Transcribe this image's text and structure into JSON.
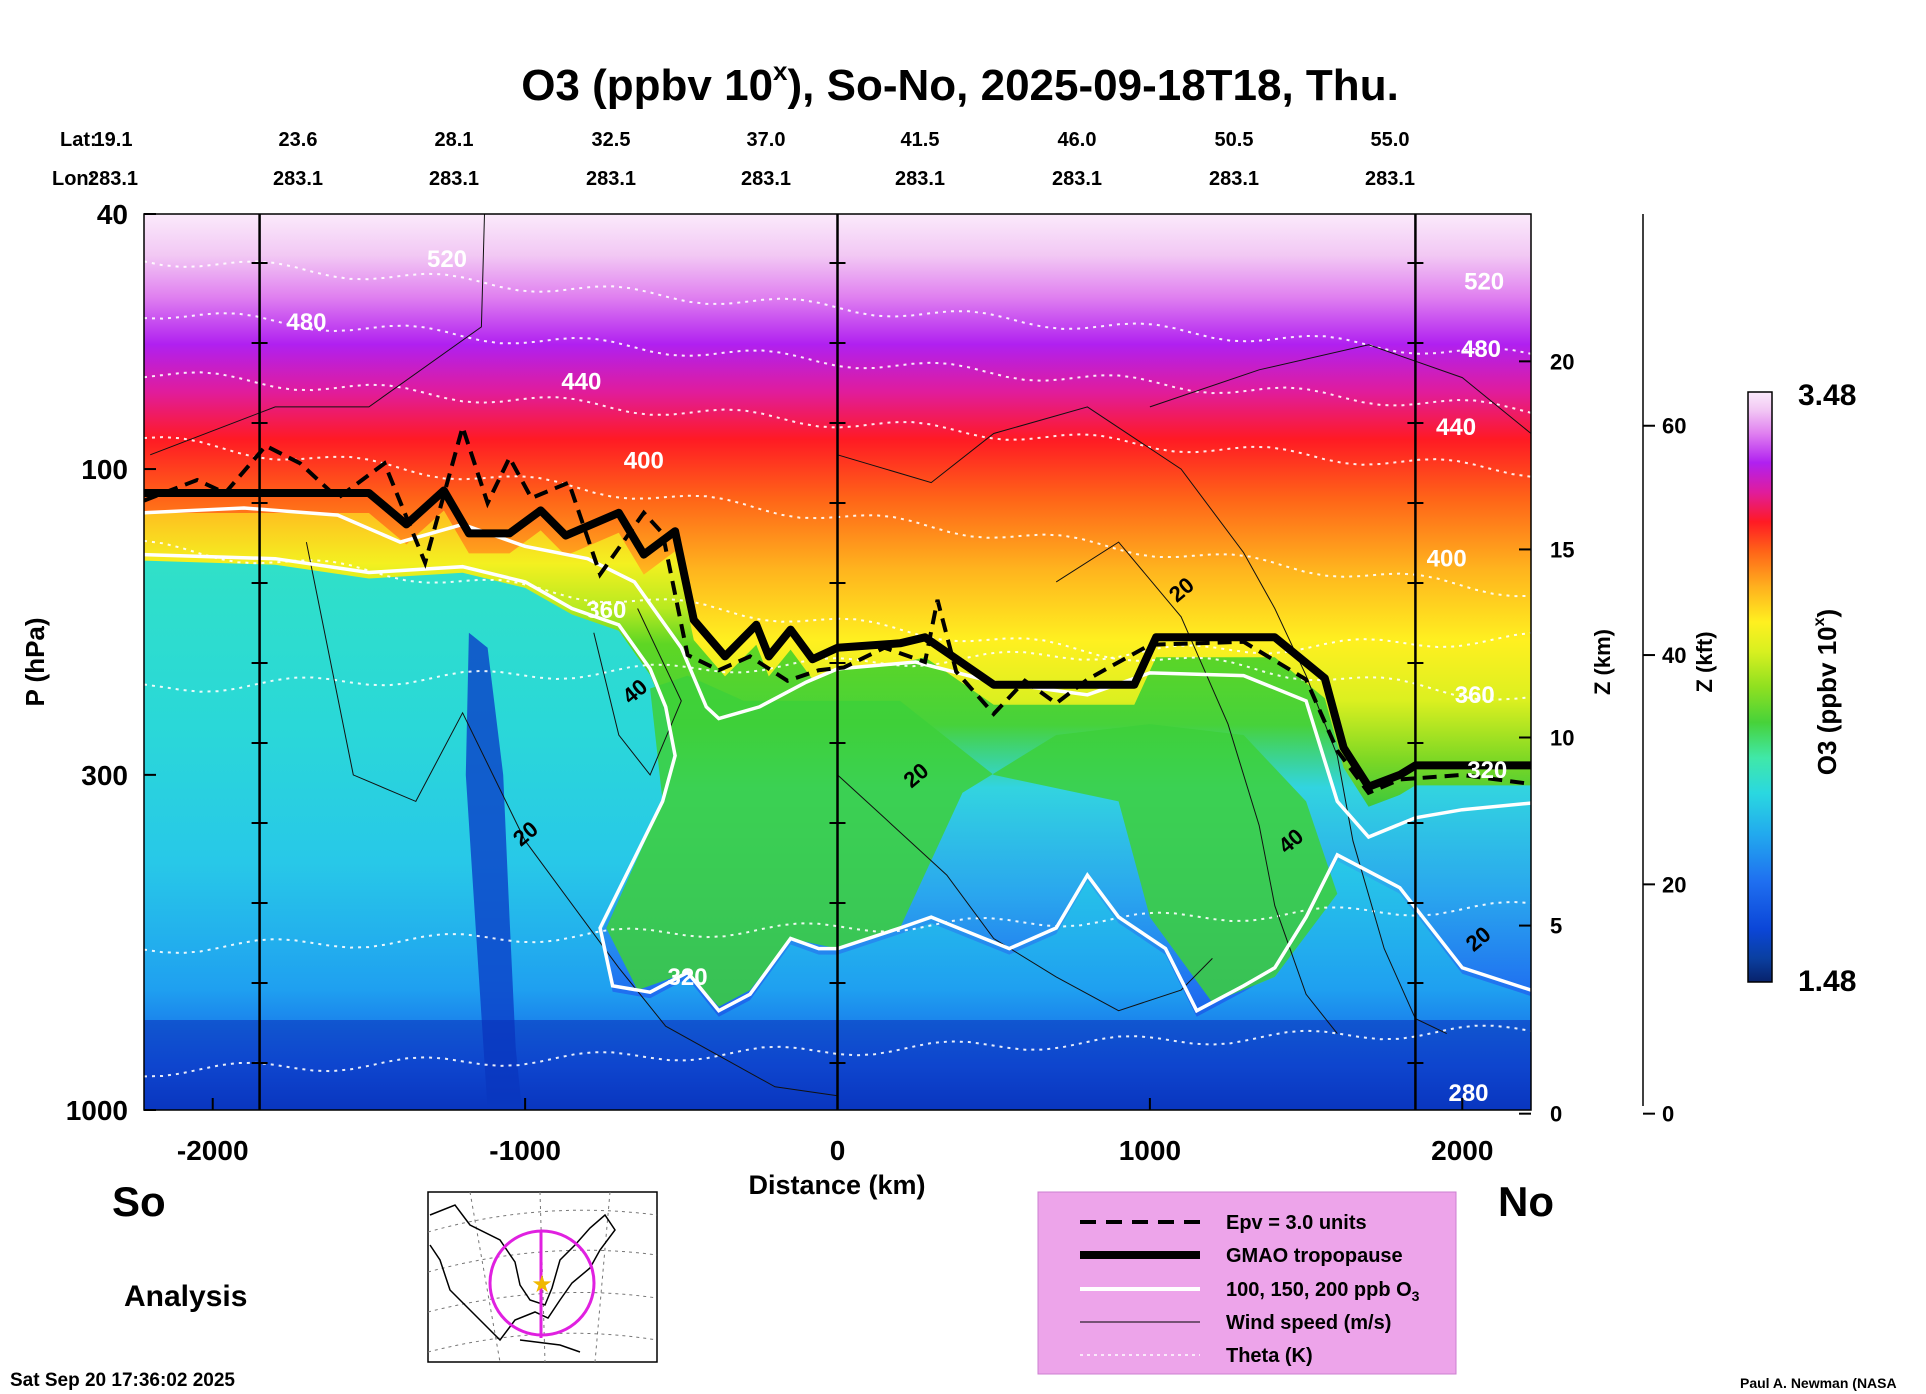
{
  "chart_data": {
    "type": "heatmap",
    "title_main": "O3 (ppbv 10",
    "title_sup": "x",
    "title_rest": "), So-No, 2025-09-18T18, Thu.",
    "lat_label": "Lat:",
    "lon_label": "Lon:",
    "lats": [
      "19.1",
      "23.6",
      "28.1",
      "32.5",
      "37.0",
      "41.5",
      "46.0",
      "50.5",
      "55.0"
    ],
    "lons": [
      "283.1",
      "283.1",
      "283.1",
      "283.1",
      "283.1",
      "283.1",
      "283.1",
      "283.1",
      "283.1"
    ],
    "xlabel": "Distance (km)",
    "xlim": [
      -2220,
      2220
    ],
    "xticks": [
      -2000,
      -1000,
      0,
      1000,
      2000
    ],
    "vlines": [
      -1850,
      0,
      1850
    ],
    "ylabel": "P (hPa)",
    "ylim": [
      1000,
      40
    ],
    "yticks": [
      40,
      100,
      300,
      1000
    ],
    "z_km_label": "Z (km)",
    "z_km_ticks": [
      0,
      5,
      10,
      15,
      20
    ],
    "z_kft_label": "Z (kft)",
    "z_kft_ticks": [
      0,
      20,
      40,
      60
    ],
    "colorbar": {
      "label_main": "O3 (ppbv 10",
      "label_sup": "x",
      "label_end": ")",
      "max": "3.48",
      "min": "1.48"
    },
    "colorbar_colors": [
      "#08226b",
      "#0a3fa0",
      "#0b46d8",
      "#1f6ff0",
      "#22a9ee",
      "#2ad8e0",
      "#40e8a8",
      "#47d23a",
      "#8fe020",
      "#d8f020",
      "#fff020",
      "#ffb01e",
      "#ff6418",
      "#ff1a24",
      "#e01c9c",
      "#b020f0",
      "#e080f0",
      "#f2c8f4",
      "#fbeafb"
    ],
    "theta_labels": [
      {
        "value": "520",
        "x": -1250,
        "p": 47
      },
      {
        "value": "480",
        "x": -1700,
        "p": 59
      },
      {
        "value": "440",
        "x": -820,
        "p": 73
      },
      {
        "value": "400",
        "x": -620,
        "p": 97
      },
      {
        "value": "360",
        "x": -740,
        "p": 166
      },
      {
        "value": "320",
        "x": -480,
        "p": 620
      },
      {
        "value": "280",
        "x": 2020,
        "p": 940
      },
      {
        "value": "520",
        "x": 2070,
        "p": 51
      },
      {
        "value": "480",
        "x": 2060,
        "p": 65
      },
      {
        "value": "440",
        "x": 1980,
        "p": 86
      },
      {
        "value": "400",
        "x": 1950,
        "p": 138
      },
      {
        "value": "360",
        "x": 2040,
        "p": 225
      },
      {
        "value": "320",
        "x": 2080,
        "p": 295
      }
    ],
    "wind_labels": [
      {
        "value": "40",
        "x": -650,
        "p": 222
      },
      {
        "value": "20",
        "x": -1000,
        "p": 370
      },
      {
        "value": "20",
        "x": 250,
        "p": 300
      },
      {
        "value": "20",
        "x": 1100,
        "p": 154
      },
      {
        "value": "40",
        "x": 1450,
        "p": 380
      },
      {
        "value": "20",
        "x": 2050,
        "p": 540
      }
    ],
    "legend": {
      "items": [
        "Epv = 3.0 units",
        "GMAO tropopause",
        "100, 150, 200 ppb O",
        "Wind speed (m/s)",
        "Theta (K)"
      ],
      "o3_subscript": "3"
    },
    "tropopause": [
      [
        -2220,
        109
      ],
      [
        -1500,
        109
      ],
      [
        -1380,
        122
      ],
      [
        -1260,
        108
      ],
      [
        -1180,
        126
      ],
      [
        -1050,
        126
      ],
      [
        -950,
        116
      ],
      [
        -870,
        127
      ],
      [
        -700,
        117
      ],
      [
        -620,
        136
      ],
      [
        -520,
        125
      ],
      [
        -460,
        172
      ],
      [
        -360,
        196
      ],
      [
        -260,
        175
      ],
      [
        -220,
        196
      ],
      [
        -150,
        178
      ],
      [
        -80,
        198
      ],
      [
        0,
        190
      ],
      [
        200,
        187
      ],
      [
        280,
        183
      ],
      [
        500,
        217
      ],
      [
        950,
        217
      ],
      [
        1020,
        183
      ],
      [
        1400,
        183
      ],
      [
        1560,
        212
      ],
      [
        1620,
        272
      ],
      [
        1700,
        313
      ],
      [
        1800,
        300
      ],
      [
        1850,
        290
      ],
      [
        2220,
        290
      ]
    ],
    "epv": [
      [
        -2220,
        112
      ],
      [
        -2050,
        104
      ],
      [
        -1960,
        109
      ],
      [
        -1830,
        92
      ],
      [
        -1720,
        98
      ],
      [
        -1600,
        111
      ],
      [
        -1450,
        98
      ],
      [
        -1320,
        140
      ],
      [
        -1200,
        86
      ],
      [
        -1120,
        113
      ],
      [
        -1050,
        96
      ],
      [
        -980,
        111
      ],
      [
        -860,
        105
      ],
      [
        -760,
        146
      ],
      [
        -620,
        117
      ],
      [
        -560,
        126
      ],
      [
        -480,
        195
      ],
      [
        -380,
        206
      ],
      [
        -280,
        196
      ],
      [
        -160,
        214
      ],
      [
        -60,
        206
      ],
      [
        20,
        204
      ],
      [
        150,
        190
      ],
      [
        280,
        200
      ],
      [
        320,
        160
      ],
      [
        380,
        207
      ],
      [
        500,
        241
      ],
      [
        600,
        214
      ],
      [
        700,
        232
      ],
      [
        800,
        213
      ],
      [
        1000,
        188
      ],
      [
        1300,
        186
      ],
      [
        1500,
        213
      ],
      [
        1600,
        275
      ],
      [
        1700,
        320
      ],
      [
        1800,
        305
      ],
      [
        2000,
        300
      ],
      [
        2220,
        310
      ]
    ],
    "ozone_contours": [
      [
        [
          -2220,
          117
        ],
        [
          -1900,
          115
        ],
        [
          -1600,
          118
        ],
        [
          -1400,
          130
        ],
        [
          -1200,
          122
        ],
        [
          -1000,
          132
        ],
        [
          -800,
          138
        ],
        [
          -650,
          150
        ],
        [
          -500,
          190
        ],
        [
          -420,
          235
        ],
        [
          -380,
          245
        ],
        [
          -250,
          235
        ],
        [
          -100,
          215
        ],
        [
          0,
          205
        ],
        [
          250,
          200
        ],
        [
          500,
          215
        ],
        [
          800,
          225
        ],
        [
          1000,
          208
        ],
        [
          1300,
          210
        ],
        [
          1500,
          230
        ],
        [
          1600,
          330
        ],
        [
          1700,
          375
        ],
        [
          1850,
          350
        ],
        [
          2000,
          340
        ],
        [
          2220,
          332
        ]
      ],
      [
        [
          -2220,
          136
        ],
        [
          -1800,
          138
        ],
        [
          -1500,
          145
        ],
        [
          -1200,
          142
        ],
        [
          -1000,
          150
        ],
        [
          -850,
          165
        ],
        [
          -700,
          175
        ],
        [
          -600,
          205
        ],
        [
          -550,
          235
        ],
        [
          -520,
          280
        ],
        [
          -560,
          330
        ],
        [
          -760,
          520
        ],
        [
          -720,
          640
        ],
        [
          -600,
          655
        ],
        [
          -480,
          610
        ],
        [
          -380,
          700
        ],
        [
          -280,
          660
        ],
        [
          -150,
          540
        ],
        [
          -60,
          560
        ],
        [
          0,
          560
        ],
        [
          200,
          520
        ],
        [
          300,
          500
        ],
        [
          550,
          560
        ],
        [
          700,
          520
        ],
        [
          800,
          430
        ],
        [
          900,
          500
        ],
        [
          1050,
          560
        ],
        [
          1150,
          700
        ],
        [
          1300,
          640
        ],
        [
          1400,
          600
        ],
        [
          1500,
          500
        ],
        [
          1600,
          400
        ],
        [
          1800,
          450
        ],
        [
          2000,
          600
        ],
        [
          2220,
          650
        ]
      ]
    ],
    "wind_contours": [
      [
        [
          -1130,
          40
        ],
        [
          -1140,
          60
        ],
        [
          -1500,
          80
        ],
        [
          -1800,
          80
        ],
        [
          -2200,
          95
        ]
      ],
      [
        [
          -1700,
          130
        ],
        [
          -1550,
          300
        ],
        [
          -1350,
          330
        ],
        [
          -1200,
          240
        ],
        [
          -1000,
          380
        ],
        [
          -700,
          600
        ],
        [
          -550,
          740
        ],
        [
          -200,
          920
        ],
        [
          0,
          950
        ]
      ],
      [
        [
          -780,
          180
        ],
        [
          -700,
          260
        ],
        [
          -600,
          300
        ],
        [
          -500,
          230
        ],
        [
          -640,
          165
        ]
      ],
      [
        [
          0,
          95
        ],
        [
          300,
          105
        ],
        [
          500,
          88
        ],
        [
          800,
          80
        ],
        [
          1100,
          100
        ],
        [
          1300,
          135
        ],
        [
          1400,
          165
        ],
        [
          1500,
          210
        ],
        [
          1600,
          280
        ],
        [
          1650,
          380
        ],
        [
          1750,
          560
        ],
        [
          1850,
          720
        ],
        [
          1950,
          760
        ]
      ],
      [
        [
          700,
          150
        ],
        [
          900,
          130
        ],
        [
          1100,
          170
        ],
        [
          1250,
          250
        ],
        [
          1350,
          360
        ],
        [
          1400,
          480
        ],
        [
          1500,
          660
        ],
        [
          1600,
          760
        ]
      ],
      [
        [
          0,
          300
        ],
        [
          150,
          350
        ],
        [
          350,
          430
        ],
        [
          500,
          540
        ],
        [
          700,
          620
        ],
        [
          900,
          700
        ],
        [
          1100,
          650
        ],
        [
          1200,
          580
        ]
      ],
      [
        [
          1000,
          80
        ],
        [
          1350,
          70
        ],
        [
          1700,
          64
        ],
        [
          2000,
          72
        ],
        [
          2220,
          88
        ]
      ]
    ]
  },
  "footer": {
    "so": "So",
    "no": "No",
    "analysis": "Analysis",
    "timestamp": "Sat Sep 20 17:36:02 2025",
    "credit": "Paul A. Newman (NASA"
  }
}
